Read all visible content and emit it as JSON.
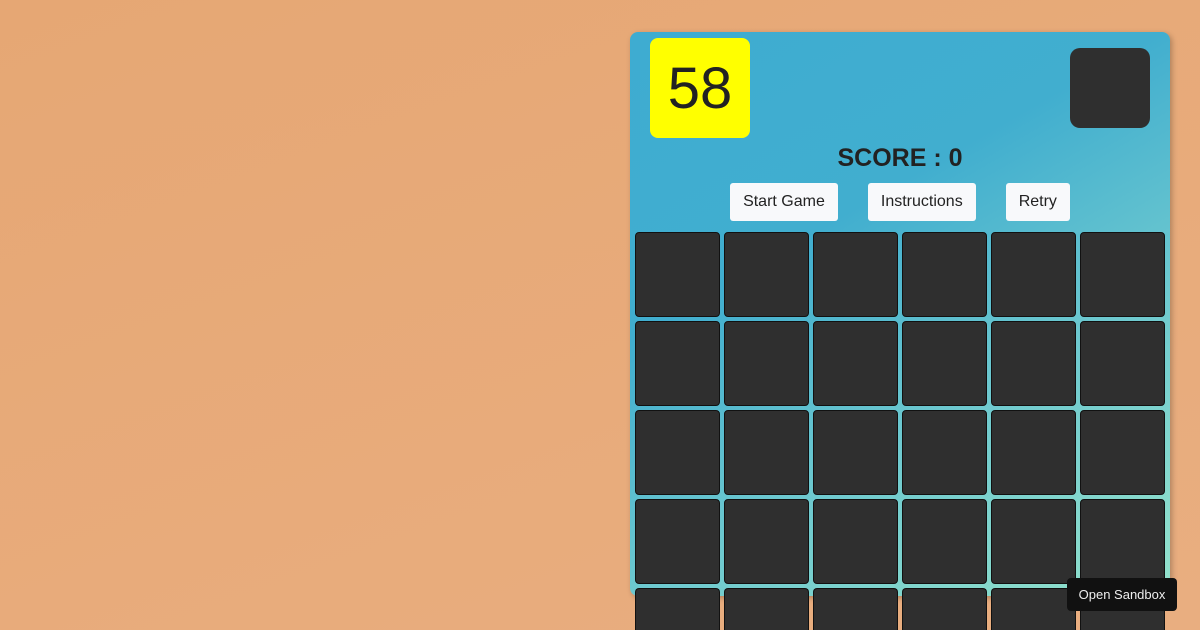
{
  "game": {
    "timer": "58",
    "score_label": "SCORE : 0",
    "buttons": {
      "start": "Start Game",
      "instructions": "Instructions",
      "retry": "Retry"
    },
    "grid_columns": 6,
    "grid_cells": 30,
    "colors": {
      "timer_bg": "#ffff00",
      "cell": "#2f2f2f",
      "background": "#e8aa78"
    }
  },
  "sandbox": {
    "label": "Open Sandbox"
  }
}
